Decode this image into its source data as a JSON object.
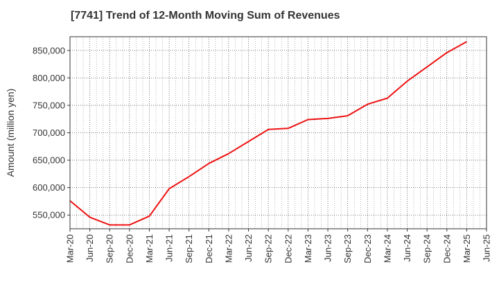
{
  "chart_data": {
    "type": "line",
    "title": "[7741]  Trend of 12-Month Moving Sum of Revenues",
    "xlabel": "",
    "ylabel": "Amount (million yen)",
    "ylim": [
      525000,
      875000
    ],
    "y_ticks": [
      550000,
      600000,
      650000,
      700000,
      750000,
      800000,
      850000
    ],
    "y_tick_labels": [
      "550,000",
      "600,000",
      "650,000",
      "700,000",
      "750,000",
      "800,000",
      "850,000"
    ],
    "x_tick_labels": [
      "Mar-20",
      "Jun-20",
      "Sep-20",
      "Dec-20",
      "Mar-21",
      "Jun-21",
      "Sep-21",
      "Dec-21",
      "Mar-22",
      "Jun-22",
      "Sep-22",
      "Dec-22",
      "Mar-23",
      "Jun-23",
      "Sep-23",
      "Dec-23",
      "Mar-24",
      "Jun-24",
      "Sep-24",
      "Dec-24",
      "Mar-25",
      "Jun-25"
    ],
    "grid": true,
    "series": [
      {
        "color": "#ee1111",
        "x": [
          "Mar-20",
          "Jun-20",
          "Sep-20",
          "Dec-20",
          "Mar-21",
          "Jun-21",
          "Sep-21",
          "Dec-21",
          "Mar-22",
          "Jun-22",
          "Sep-22",
          "Dec-22",
          "Mar-23",
          "Jun-23",
          "Sep-23",
          "Dec-23",
          "Mar-24",
          "Jun-24",
          "Sep-24",
          "Dec-24",
          "Mar-25"
        ],
        "values": [
          576000,
          546000,
          532000,
          532000,
          548000,
          598000,
          620000,
          644000,
          662000,
          684000,
          706000,
          708000,
          724000,
          726000,
          731000,
          752000,
          763000,
          794000,
          820000,
          846000,
          866000
        ]
      }
    ]
  }
}
